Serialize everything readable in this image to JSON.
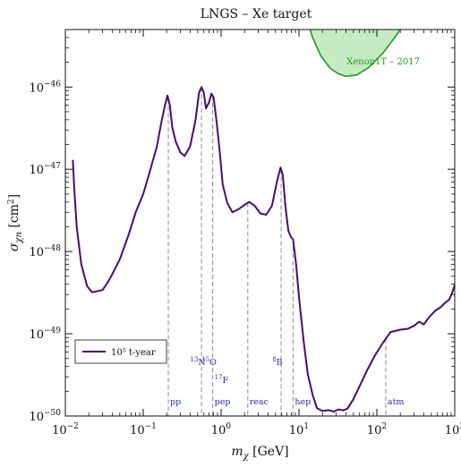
{
  "chart_data": {
    "type": "line",
    "title": "LNGS – Xe target",
    "xlabel_main": "m",
    "xlabel_sub": "χ",
    "xlabel_unit": " [GeV]",
    "ylabel_main": "σ",
    "ylabel_sub": "χn",
    "ylabel_unit": " [cm",
    "ylabel_unit_sup": "2",
    "ylabel_unit_close": "]",
    "x_scale": "log",
    "y_scale": "log",
    "xlim": [
      0.01,
      1000
    ],
    "ylim": [
      1e-50,
      5e-46
    ],
    "x_ticks": [
      {
        "value": 0.01,
        "base": "10",
        "exp": "−2"
      },
      {
        "value": 0.1,
        "base": "10",
        "exp": "−1"
      },
      {
        "value": 1,
        "base": "10",
        "exp": "0"
      },
      {
        "value": 10,
        "base": "10",
        "exp": "1"
      },
      {
        "value": 100,
        "base": "10",
        "exp": "2"
      },
      {
        "value": 1000,
        "base": "10",
        "exp": "3"
      }
    ],
    "y_ticks": [
      {
        "value": 1e-50,
        "base": "10",
        "exp": "−50"
      },
      {
        "value": 1e-49,
        "base": "10",
        "exp": "−49"
      },
      {
        "value": 1e-48,
        "base": "10",
        "exp": "−48"
      },
      {
        "value": 1e-47,
        "base": "10",
        "exp": "−47"
      },
      {
        "value": 1e-46,
        "base": "10",
        "exp": "−46"
      }
    ],
    "series": [
      {
        "name": "10⁵ t-year",
        "color": "#4b0a73",
        "points": [
          [
            0.0125,
            1.3e-47
          ],
          [
            0.013,
            6e-48
          ],
          [
            0.014,
            2e-48
          ],
          [
            0.016,
            7e-49
          ],
          [
            0.019,
            3.8e-49
          ],
          [
            0.022,
            3.2e-49
          ],
          [
            0.026,
            3.3e-49
          ],
          [
            0.03,
            3.4e-49
          ],
          [
            0.035,
            4.2e-49
          ],
          [
            0.04,
            5.3e-49
          ],
          [
            0.05,
            8e-49
          ],
          [
            0.065,
            1.6e-48
          ],
          [
            0.08,
            3e-48
          ],
          [
            0.1,
            5e-48
          ],
          [
            0.12,
            9e-48
          ],
          [
            0.15,
            1.9e-47
          ],
          [
            0.17,
            3.6e-47
          ],
          [
            0.19,
            6e-47
          ],
          [
            0.205,
            7.9e-47
          ],
          [
            0.22,
            6e-47
          ],
          [
            0.235,
            3.3e-47
          ],
          [
            0.26,
            2.2e-47
          ],
          [
            0.3,
            1.6e-47
          ],
          [
            0.34,
            1.45e-47
          ],
          [
            0.4,
            1.9e-47
          ],
          [
            0.47,
            4e-47
          ],
          [
            0.52,
            8.5e-47
          ],
          [
            0.56,
            1e-46
          ],
          [
            0.6,
            8.5e-47
          ],
          [
            0.64,
            5.5e-47
          ],
          [
            0.7,
            6.5e-47
          ],
          [
            0.75,
            8.3e-47
          ],
          [
            0.8,
            7.5e-47
          ],
          [
            0.87,
            4e-47
          ],
          [
            0.95,
            1.8e-47
          ],
          [
            1.05,
            6.5e-48
          ],
          [
            1.2,
            3.9e-48
          ],
          [
            1.4,
            3e-48
          ],
          [
            1.7,
            3.3e-48
          ],
          [
            2.0,
            3.7e-48
          ],
          [
            2.3,
            4e-48
          ],
          [
            2.7,
            3.6e-48
          ],
          [
            3.2,
            2.9e-48
          ],
          [
            3.8,
            2.8e-48
          ],
          [
            4.5,
            3.6e-48
          ],
          [
            5.2,
            7e-48
          ],
          [
            5.8,
            1.05e-47
          ],
          [
            6.2,
            8.5e-48
          ],
          [
            6.7,
            3.5e-48
          ],
          [
            7.3,
            1.8e-48
          ],
          [
            7.9,
            1.5e-48
          ],
          [
            8.4,
            1.4e-48
          ],
          [
            9.2,
            7e-49
          ],
          [
            10,
            2.8e-49
          ],
          [
            11.5,
            8e-50
          ],
          [
            13,
            3.2e-50
          ],
          [
            15,
            1.8e-50
          ],
          [
            17,
            1.25e-50
          ],
          [
            20,
            1.15e-50
          ],
          [
            24,
            1.18e-50
          ],
          [
            28,
            1.13e-50
          ],
          [
            32,
            1.2e-50
          ],
          [
            37,
            1.17e-50
          ],
          [
            42,
            1.23e-50
          ],
          [
            50,
            1.6e-50
          ],
          [
            60,
            2.3e-50
          ],
          [
            75,
            3.6e-50
          ],
          [
            95,
            5.5e-50
          ],
          [
            120,
            7.8e-50
          ],
          [
            150,
            1.05e-49
          ],
          [
            200,
            1.12e-49
          ],
          [
            250,
            1.15e-49
          ],
          [
            300,
            1.25e-49
          ],
          [
            350,
            1.4e-49
          ],
          [
            400,
            1.3e-49
          ],
          [
            470,
            1.6e-49
          ],
          [
            560,
            1.9e-49
          ],
          [
            660,
            2.1e-49
          ],
          [
            760,
            2.4e-49
          ],
          [
            850,
            2.6e-49
          ],
          [
            930,
            3.2e-49
          ],
          [
            1000,
            3.9e-49
          ]
        ]
      }
    ],
    "exclusion_region": {
      "name": "Xenon1T – 2017",
      "fill": "#c6ebc2",
      "stroke": "#1f9a1f",
      "points": [
        [
          13,
          6e-46
        ],
        [
          15,
          4e-46
        ],
        [
          19,
          2.4e-46
        ],
        [
          25,
          1.7e-46
        ],
        [
          32,
          1.45e-46
        ],
        [
          40,
          1.35e-46
        ],
        [
          55,
          1.4e-46
        ],
        [
          80,
          1.75e-46
        ],
        [
          120,
          2.6e-46
        ],
        [
          170,
          4e-46
        ],
        [
          230,
          6e-46
        ]
      ]
    },
    "neutrino_sources": [
      {
        "mass": 0.21,
        "label_low": "pp",
        "label_high": ""
      },
      {
        "mass": 0.56,
        "label_low": "",
        "label_high_sup": "13",
        "label_high": "N"
      },
      {
        "mass": 0.78,
        "label_low": "pep",
        "label_high_sup": "15",
        "label_high": "O",
        "label_mid_sup": "17",
        "label_mid": "F"
      },
      {
        "mass": 2.2,
        "label_low": "reac",
        "label_high": ""
      },
      {
        "mass": 5.9,
        "label_low": "",
        "label_high_sup": "8",
        "label_high": "B"
      },
      {
        "mass": 8.4,
        "label_low": "hep",
        "label_high": ""
      },
      {
        "mass": 130,
        "label_low": "atm",
        "label_high": ""
      }
    ],
    "legend": {
      "position": "bottom-left",
      "label": "10⁵ t-year"
    },
    "grid": false
  }
}
